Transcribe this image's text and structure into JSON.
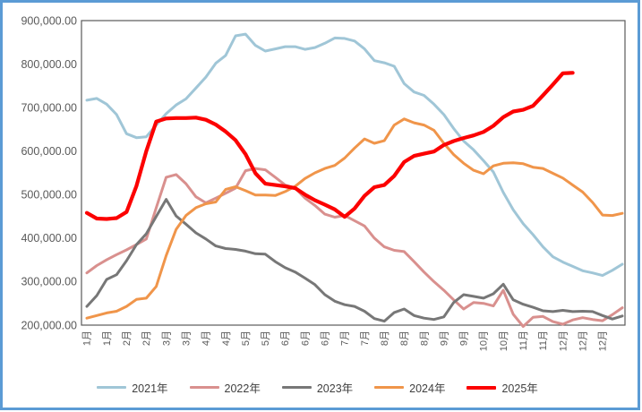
{
  "frame": {
    "border_color": "#5B9BD5",
    "background": "#FFFFFF"
  },
  "axis_style": {
    "text_color": "#595959",
    "line_color": "#595959"
  },
  "chart_data": {
    "type": "line",
    "title": "",
    "xlabel": "",
    "ylabel": "",
    "grid": false,
    "legend_position": "bottom",
    "y_axis": {
      "min": 200000,
      "max": 900000,
      "tick_step": 100000,
      "tick_labels": [
        "900,000.00",
        "800,000.00",
        "700,000.00",
        "600,000.00",
        "500,000.00",
        "400,000.00",
        "300,000.00",
        "200,000.00"
      ]
    },
    "x_axis": {
      "note": "weekly points, label shown every second point",
      "tick_labels": [
        "1月",
        "1月",
        "2月",
        "2月",
        "3月",
        "3月",
        "4月",
        "4月",
        "5月",
        "5月",
        "6月",
        "6月",
        "6月",
        "7月",
        "7月",
        "8月",
        "8月",
        "8月",
        "9月",
        "9月",
        "10月",
        "10月",
        "11月",
        "11月",
        "12月",
        "12月",
        "12月"
      ]
    },
    "series": [
      {
        "name": "2021年",
        "color": "#A0C6D7",
        "width": 3,
        "values": [
          717000,
          721000,
          708000,
          684000,
          640000,
          631000,
          633000,
          660000,
          686000,
          706000,
          720000,
          745000,
          770000,
          802000,
          820000,
          865000,
          869000,
          843000,
          830000,
          835000,
          840000,
          840000,
          834000,
          838000,
          848000,
          860000,
          859000,
          853000,
          835000,
          808000,
          803000,
          795000,
          755000,
          736000,
          728000,
          708000,
          684000,
          652000,
          623000,
          603000,
          578000,
          552000,
          505000,
          465000,
          433000,
          408000,
          380000,
          357000,
          345000,
          335000,
          325000,
          320000,
          314000,
          326000,
          340000
        ]
      },
      {
        "name": "2022年",
        "color": "#D9908E",
        "width": 3,
        "values": [
          320000,
          337000,
          350000,
          362000,
          373000,
          385000,
          398000,
          470000,
          540000,
          546000,
          525000,
          495000,
          481000,
          492000,
          503000,
          515000,
          555000,
          560000,
          557000,
          540000,
          522000,
          515000,
          492000,
          475000,
          455000,
          448000,
          452000,
          440000,
          428000,
          400000,
          380000,
          372000,
          369000,
          346000,
          322000,
          300000,
          280000,
          258000,
          237000,
          252000,
          250000,
          244000,
          280000,
          225000,
          197000,
          218000,
          220000,
          208000,
          202000,
          212000,
          217000,
          213000,
          210000,
          224000,
          240000
        ]
      },
      {
        "name": "2023年",
        "color": "#777777",
        "width": 3,
        "values": [
          243000,
          268000,
          305000,
          316000,
          348000,
          385000,
          410000,
          450000,
          489000,
          451000,
          432000,
          412000,
          398000,
          382000,
          376000,
          374000,
          370000,
          364000,
          363000,
          346000,
          332000,
          322000,
          308000,
          293000,
          270000,
          255000,
          247000,
          243000,
          232000,
          215000,
          209000,
          229000,
          237000,
          222000,
          216000,
          213000,
          219000,
          252000,
          270000,
          266000,
          262000,
          272000,
          294000,
          258000,
          248000,
          241000,
          233000,
          231000,
          234000,
          231000,
          232000,
          231000,
          222000,
          214000,
          221000
        ]
      },
      {
        "name": "2024年",
        "color": "#F0954A",
        "width": 3,
        "values": [
          216000,
          222000,
          228000,
          232000,
          243000,
          259000,
          262000,
          289000,
          360000,
          420000,
          452000,
          470000,
          479000,
          483000,
          512000,
          518000,
          509000,
          499000,
          499000,
          498000,
          507000,
          519000,
          537000,
          550000,
          560000,
          567000,
          584000,
          607000,
          628000,
          618000,
          624000,
          660000,
          674000,
          665000,
          660000,
          648000,
          618000,
          592000,
          572000,
          556000,
          548000,
          566000,
          572000,
          573000,
          571000,
          563000,
          560000,
          549000,
          538000,
          522000,
          506000,
          482000,
          453000,
          452000,
          457000
        ]
      },
      {
        "name": "2025年",
        "color": "#FC0000",
        "width": 4.2,
        "values": [
          458000,
          445000,
          444000,
          446000,
          460000,
          520000,
          600000,
          668000,
          675000,
          676000,
          676000,
          677000,
          672000,
          661000,
          645000,
          625000,
          593000,
          549000,
          525000,
          522000,
          519000,
          515000,
          500000,
          487000,
          477000,
          466000,
          449000,
          468000,
          497000,
          517000,
          522000,
          543000,
          575000,
          589000,
          594000,
          599000,
          614000,
          623000,
          630000,
          636000,
          644000,
          658000,
          678000,
          691000,
          695000,
          704000,
          728000,
          753000,
          779000,
          780000,
          null,
          null,
          null,
          null,
          null
        ]
      }
    ]
  }
}
